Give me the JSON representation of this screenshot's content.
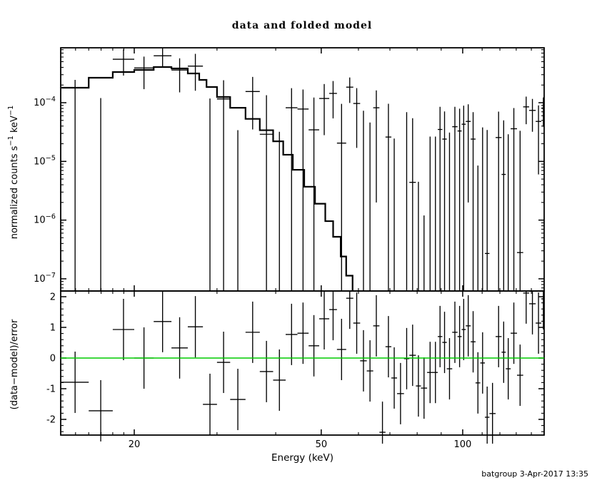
{
  "title": "data and folded model",
  "footer": "batgroup  3-Apr-2017 13:35",
  "chart_data": {
    "type": "scatter",
    "title": "data and folded model",
    "xlabel": "Energy (keV)",
    "xscale": "log",
    "xlim": [
      13.95,
      150.3
    ],
    "xticks": {
      "major": [
        20,
        50,
        100
      ],
      "labels": [
        "20",
        "50",
        "100"
      ],
      "minor": [
        15,
        16,
        17,
        18,
        19,
        30,
        40,
        60,
        70,
        80,
        90,
        110,
        120,
        130,
        140
      ]
    },
    "panels": [
      {
        "name": "spectrum",
        "ylabel": "normalized counts s^−1^ keV^−1^",
        "yscale": "log",
        "ylim": [
          6.2e-08,
          0.00086
        ],
        "yticks": {
          "major": [
            0.0001,
            1e-05,
            1e-06,
            1e-07
          ],
          "labels": [
            "10^−4^",
            "10^−5^",
            "10^−6^",
            "10^−7^"
          ]
        }
      },
      {
        "name": "residuals",
        "ylabel": "(data−model)/error",
        "yscale": "linear",
        "ylim": [
          -2.55,
          2.19
        ],
        "yticks": {
          "major": [
            2,
            1,
            0,
            -1,
            -2
          ],
          "labels": [
            "2",
            "1",
            "0",
            "-1",
            "-2"
          ]
        },
        "zero_line": {
          "y": 0,
          "color": "#00cc00"
        },
        "error_half_length": 1
      }
    ],
    "model_steps": [
      [
        14,
        16,
        0.00018
      ],
      [
        16,
        18,
        0.000266
      ],
      [
        18,
        20,
        0.000333
      ],
      [
        20,
        22,
        0.000362
      ],
      [
        22,
        24,
        0.000405
      ],
      [
        24,
        26,
        0.000383
      ],
      [
        26,
        27.5,
        0.000315
      ],
      [
        27.5,
        28.5,
        0.000245
      ],
      [
        28.5,
        30,
        0.000185
      ],
      [
        30,
        32,
        0.000125
      ],
      [
        32,
        34.5,
        8.2e-05
      ],
      [
        34.5,
        37,
        5.3e-05
      ],
      [
        37,
        39.5,
        3.4e-05
      ],
      [
        39.5,
        41.5,
        2.2e-05
      ],
      [
        41.5,
        43.5,
        1.3e-05
      ],
      [
        43.5,
        46,
        7.2e-06
      ],
      [
        46,
        48.5,
        3.7e-06
      ],
      [
        48.5,
        51,
        1.9e-06
      ],
      [
        51,
        53,
        9.6e-07
      ],
      [
        53,
        55,
        5.2e-07
      ],
      [
        55,
        56.5,
        2.4e-07
      ],
      [
        56.5,
        58.3,
        1.13e-07
      ]
    ],
    "bins_key": [
      "e_lo_keV",
      "e_hi_keV",
      "value",
      "sigma",
      "upper_line_top",
      "residual"
    ],
    "bins": [
      [
        14,
        16,
        null,
        null,
        0.000245,
        -0.79
      ],
      [
        16,
        18,
        null,
        null,
        0.00012,
        -1.72
      ],
      [
        18,
        20,
        0.00055,
        0.00026,
        null,
        0.93
      ],
      [
        20,
        22,
        0.00039,
        0.00022,
        null,
        0.0
      ],
      [
        22,
        24,
        0.00063,
        0.00023,
        null,
        1.19
      ],
      [
        24,
        26,
        0.00036,
        0.00021,
        null,
        0.33
      ],
      [
        26,
        28,
        0.00042,
        0.00026,
        null,
        1.02
      ],
      [
        28,
        30,
        null,
        null,
        0.000118,
        -1.51
      ],
      [
        30,
        32,
        0.000116,
        0.000125,
        null,
        -0.14
      ],
      [
        32,
        34.5,
        null,
        null,
        3.4e-05,
        -1.35
      ],
      [
        34.5,
        37,
        0.000155,
        0.00012,
        null,
        0.84
      ],
      [
        37,
        39.5,
        2.9e-05,
        0.000105,
        null,
        -0.44
      ],
      [
        39.5,
        42,
        null,
        null,
        3.2e-05,
        -0.72
      ],
      [
        42,
        44.5,
        8.2e-05,
        9.5e-05,
        null,
        0.77
      ],
      [
        44.5,
        47,
        7.8e-05,
        9e-05,
        null,
        0.81
      ],
      [
        47,
        49.5,
        3.45e-05,
        8.8e-05,
        null,
        0.4
      ],
      [
        49.5,
        52,
        0.000118,
        9e-05,
        null,
        1.28
      ],
      [
        52,
        54,
        0.000144,
        9e-05,
        null,
        1.58
      ],
      [
        54,
        56.5,
        2.05e-05,
        7.5e-05,
        null,
        0.28
      ],
      [
        56.5,
        58.5,
        0.000184,
        8.5e-05,
        null,
        1.95
      ],
      [
        58.5,
        60.5,
        9.7e-05,
        8e-05,
        null,
        1.14
      ],
      [
        60.5,
        62.5,
        null,
        null,
        7.3e-05,
        -0.09
      ],
      [
        62.5,
        64.5,
        null,
        null,
        4.6e-05,
        -0.42
      ],
      [
        64.5,
        66.5,
        8.2e-05,
        8e-05,
        null,
        1.05
      ],
      [
        66.5,
        68.5,
        null,
        null,
        null,
        -2.42
      ],
      [
        68.5,
        70.5,
        2.6e-05,
        7e-05,
        null,
        0.37
      ],
      [
        70.5,
        72.5,
        null,
        null,
        2.45e-05,
        -0.65
      ],
      [
        72.5,
        75,
        null,
        null,
        null,
        -1.16
      ],
      [
        75,
        77,
        null,
        null,
        6.9e-05,
        -0.02
      ],
      [
        77,
        79.5,
        4.4e-06,
        5e-05,
        null,
        0.09
      ],
      [
        79.5,
        81.5,
        null,
        null,
        4.5e-06,
        -0.91
      ],
      [
        81.5,
        84,
        null,
        null,
        1.2e-06,
        -0.98
      ],
      [
        84,
        86.5,
        null,
        null,
        2.65e-05,
        -0.47
      ],
      [
        86.5,
        88.5,
        null,
        null,
        2.65e-05,
        -0.47
      ],
      [
        88.5,
        90.5,
        3.5e-05,
        5e-05,
        null,
        0.7
      ],
      [
        90.5,
        92.5,
        2.4e-05,
        4.7e-05,
        null,
        0.51
      ],
      [
        92.5,
        95,
        null,
        null,
        3.1e-05,
        -0.35
      ],
      [
        95,
        97.5,
        3.9e-05,
        4.6e-05,
        null,
        0.84
      ],
      [
        97.5,
        99.5,
        3.3e-05,
        4.6e-05,
        null,
        0.7
      ],
      [
        99.5,
        101.5,
        4.3e-05,
        4.6e-05,
        null,
        0.93
      ],
      [
        101.5,
        104,
        4.8e-05,
        4.6e-05,
        null,
        1.05
      ],
      [
        104,
        106.5,
        2.4e-05,
        4.5e-05,
        null,
        0.53
      ],
      [
        106.5,
        109,
        null,
        null,
        8.5e-06,
        -0.81
      ],
      [
        109,
        111.5,
        null,
        null,
        3.8e-05,
        -0.16
      ],
      [
        111.5,
        114,
        2.7e-07,
        3.4e-05,
        null,
        -1.93
      ],
      [
        114,
        117.5,
        null,
        null,
        null,
        -1.81
      ],
      [
        117.5,
        121,
        2.55e-05,
        4.5e-05,
        null,
        0.7
      ],
      [
        121,
        123.5,
        6e-06,
        4.4e-05,
        null,
        0.19
      ],
      [
        123.5,
        126.5,
        null,
        null,
        2.9e-05,
        -0.35
      ],
      [
        126.5,
        130.5,
        3.6e-05,
        4.5e-05,
        null,
        0.81
      ],
      [
        130.5,
        134.5,
        2.8e-07,
        3.3e-05,
        null,
        -0.56
      ],
      [
        134.5,
        138.5,
        8.5e-05,
        4.2e-05,
        null,
        2.12
      ],
      [
        138.5,
        143,
        7.4e-05,
        4.2e-05,
        null,
        1.77
      ],
      [
        143,
        147,
        4.8e-05,
        4.2e-05,
        null,
        1.14
      ],
      [
        147,
        150,
        8.1e-05,
        4.2e-05,
        null,
        1.93
      ]
    ],
    "colors": {
      "data": "#000000",
      "model": "#000000",
      "zero_line": "#00cc00"
    }
  }
}
